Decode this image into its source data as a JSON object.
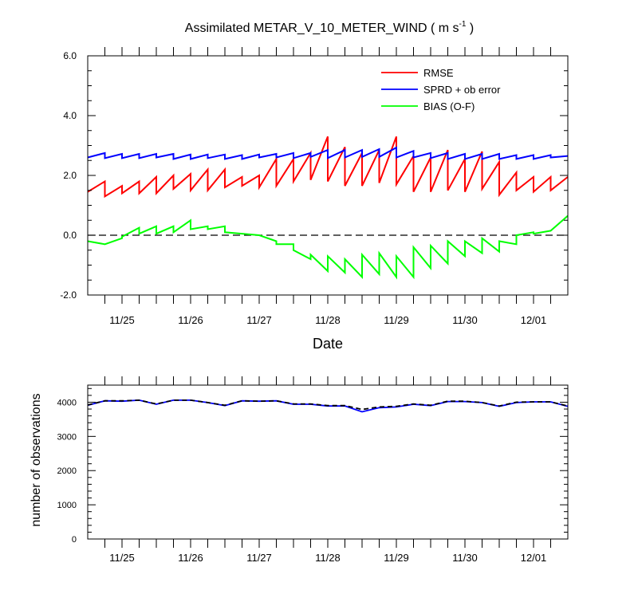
{
  "chart_data": [
    {
      "type": "line",
      "title_main": "Assimilated METAR_V_10_METER_WIND ( m s",
      "title_sup": "-1",
      "title_end": " )",
      "xlabel": "Date",
      "ylabel": "",
      "ylim": [
        -2.0,
        6.0
      ],
      "y_ticks": [
        "-2.0",
        "0.0",
        "2.0",
        "4.0",
        "6.0"
      ],
      "x_ticks": [
        "11/25",
        "11/26",
        "11/27",
        "11/28",
        "11/29",
        "11/30",
        "12/01"
      ],
      "x_tick_pos": [
        0.5,
        1.5,
        2.5,
        3.5,
        4.5,
        5.5,
        6.5
      ],
      "xlim": [
        0.0,
        7.0
      ],
      "zero_line": "dashed",
      "legend_position": "top-right",
      "series": [
        {
          "name": "RMSE",
          "color": "#ff0000",
          "x": [
            0.0,
            0.25,
            0.25,
            0.5,
            0.5,
            0.75,
            0.75,
            1.0,
            1.0,
            1.25,
            1.25,
            1.5,
            1.5,
            1.75,
            1.75,
            2.0,
            2.0,
            2.25,
            2.25,
            2.5,
            2.5,
            2.75,
            2.75,
            3.0,
            3.0,
            3.25,
            3.25,
            3.5,
            3.5,
            3.75,
            3.75,
            4.0,
            4.0,
            4.25,
            4.25,
            4.5,
            4.5,
            4.75,
            4.75,
            5.0,
            5.0,
            5.25,
            5.25,
            5.5,
            5.5,
            5.75,
            5.75,
            6.0,
            6.0,
            6.25,
            6.25,
            6.5,
            6.5,
            6.75,
            6.75,
            7.0
          ],
          "values": [
            1.45,
            1.8,
            1.3,
            1.65,
            1.4,
            1.8,
            1.4,
            1.95,
            1.4,
            2.0,
            1.55,
            2.05,
            1.5,
            2.2,
            1.5,
            2.2,
            1.6,
            1.95,
            1.65,
            2.0,
            1.6,
            2.55,
            1.65,
            2.55,
            1.8,
            2.75,
            1.85,
            3.3,
            1.8,
            2.95,
            1.65,
            2.75,
            1.65,
            2.85,
            1.75,
            3.3,
            1.7,
            2.65,
            1.45,
            2.6,
            1.45,
            2.85,
            1.5,
            2.55,
            1.45,
            2.8,
            1.55,
            2.45,
            1.35,
            2.1,
            1.5,
            1.95,
            1.45,
            1.95,
            1.5,
            1.95
          ]
        },
        {
          "name": "SPRD + ob error",
          "color": "#0000ff",
          "x": [
            0.0,
            0.25,
            0.25,
            0.5,
            0.5,
            0.75,
            0.75,
            1.0,
            1.0,
            1.25,
            1.25,
            1.5,
            1.5,
            1.75,
            1.75,
            2.0,
            2.0,
            2.25,
            2.25,
            2.5,
            2.5,
            2.75,
            2.75,
            3.0,
            3.0,
            3.25,
            3.25,
            3.5,
            3.5,
            3.75,
            3.75,
            4.0,
            4.0,
            4.25,
            4.25,
            4.5,
            4.5,
            4.75,
            4.75,
            5.0,
            5.0,
            5.25,
            5.25,
            5.5,
            5.5,
            5.75,
            5.75,
            6.0,
            6.0,
            6.25,
            6.25,
            6.5,
            6.5,
            6.75,
            6.75,
            7.0
          ],
          "values": [
            2.6,
            2.75,
            2.58,
            2.72,
            2.58,
            2.72,
            2.58,
            2.72,
            2.6,
            2.72,
            2.55,
            2.7,
            2.55,
            2.7,
            2.58,
            2.7,
            2.55,
            2.68,
            2.55,
            2.7,
            2.6,
            2.72,
            2.6,
            2.75,
            2.58,
            2.75,
            2.62,
            2.85,
            2.58,
            2.85,
            2.6,
            2.85,
            2.62,
            2.88,
            2.62,
            2.93,
            2.6,
            2.82,
            2.6,
            2.75,
            2.58,
            2.75,
            2.55,
            2.72,
            2.55,
            2.72,
            2.55,
            2.72,
            2.55,
            2.68,
            2.55,
            2.68,
            2.55,
            2.68,
            2.6,
            2.65
          ]
        },
        {
          "name": "BIAS (O-F)",
          "color": "#00ff00",
          "x": [
            0.0,
            0.25,
            0.25,
            0.5,
            0.5,
            0.75,
            0.75,
            1.0,
            1.0,
            1.25,
            1.25,
            1.5,
            1.5,
            1.75,
            1.75,
            2.0,
            2.0,
            2.25,
            2.25,
            2.5,
            2.5,
            2.75,
            2.75,
            3.0,
            3.0,
            3.25,
            3.25,
            3.5,
            3.5,
            3.75,
            3.75,
            4.0,
            4.0,
            4.25,
            4.25,
            4.5,
            4.5,
            4.75,
            4.75,
            5.0,
            5.0,
            5.25,
            5.25,
            5.5,
            5.5,
            5.75,
            5.75,
            6.0,
            6.0,
            6.25,
            6.25,
            6.5,
            6.5,
            6.75,
            6.75,
            7.0
          ],
          "values": [
            -0.2,
            -0.3,
            -0.3,
            -0.1,
            -0.05,
            0.25,
            0.05,
            0.3,
            0.05,
            0.3,
            0.1,
            0.5,
            0.2,
            0.3,
            0.2,
            0.3,
            0.1,
            0.05,
            0.05,
            0.0,
            0.0,
            -0.2,
            -0.3,
            -0.3,
            -0.5,
            -0.8,
            -0.65,
            -1.2,
            -0.7,
            -1.25,
            -0.8,
            -1.4,
            -0.65,
            -1.3,
            -0.6,
            -1.4,
            -0.7,
            -1.4,
            -0.4,
            -1.1,
            -0.35,
            -0.95,
            -0.2,
            -0.7,
            -0.2,
            -0.6,
            -0.1,
            -0.55,
            -0.2,
            -0.3,
            0.0,
            0.1,
            0.05,
            0.15,
            0.15,
            0.65
          ]
        }
      ]
    },
    {
      "type": "line",
      "title": "",
      "xlabel": "",
      "ylabel": "number of observations",
      "ylim": [
        0,
        4500
      ],
      "y_ticks": [
        "0",
        "1000",
        "2000",
        "3000",
        "4000"
      ],
      "x_ticks": [
        "11/25",
        "11/26",
        "11/27",
        "11/28",
        "11/29",
        "11/30",
        "12/01"
      ],
      "x_tick_pos": [
        0.5,
        1.5,
        2.5,
        3.5,
        4.5,
        5.5,
        6.5
      ],
      "xlim": [
        0.0,
        7.0
      ],
      "series": [
        {
          "color": "#0000ff",
          "dash": "solid",
          "x": [
            0.0,
            0.25,
            0.5,
            0.75,
            1.0,
            1.25,
            1.5,
            1.75,
            2.0,
            2.25,
            2.5,
            2.75,
            3.0,
            3.25,
            3.5,
            3.75,
            4.0,
            4.25,
            4.5,
            4.75,
            5.0,
            5.25,
            5.5,
            5.75,
            6.0,
            6.25,
            6.5,
            6.75,
            7.0
          ],
          "values": [
            3910,
            4040,
            4030,
            4060,
            3940,
            4060,
            4060,
            3990,
            3900,
            4040,
            4030,
            4040,
            3940,
            3940,
            3890,
            3890,
            3720,
            3840,
            3860,
            3940,
            3900,
            4020,
            4020,
            3990,
            3880,
            3990,
            4010,
            4010,
            3880
          ]
        },
        {
          "color": "#000000",
          "dash": "dashed",
          "x": [
            0.0,
            0.25,
            0.5,
            0.75,
            1.0,
            1.25,
            1.5,
            1.75,
            2.0,
            2.25,
            2.5,
            2.75,
            3.0,
            3.25,
            3.5,
            3.75,
            4.0,
            4.25,
            4.5,
            4.75,
            5.0,
            5.25,
            5.5,
            5.75,
            6.0,
            6.25,
            6.5,
            6.75,
            7.0
          ],
          "values": [
            3920,
            4040,
            4040,
            4060,
            3950,
            4060,
            4060,
            3990,
            3910,
            4040,
            4030,
            4040,
            3950,
            3950,
            3900,
            3900,
            3790,
            3860,
            3880,
            3950,
            3910,
            4030,
            4030,
            3990,
            3890,
            4000,
            4010,
            4010,
            3890
          ]
        }
      ]
    }
  ]
}
